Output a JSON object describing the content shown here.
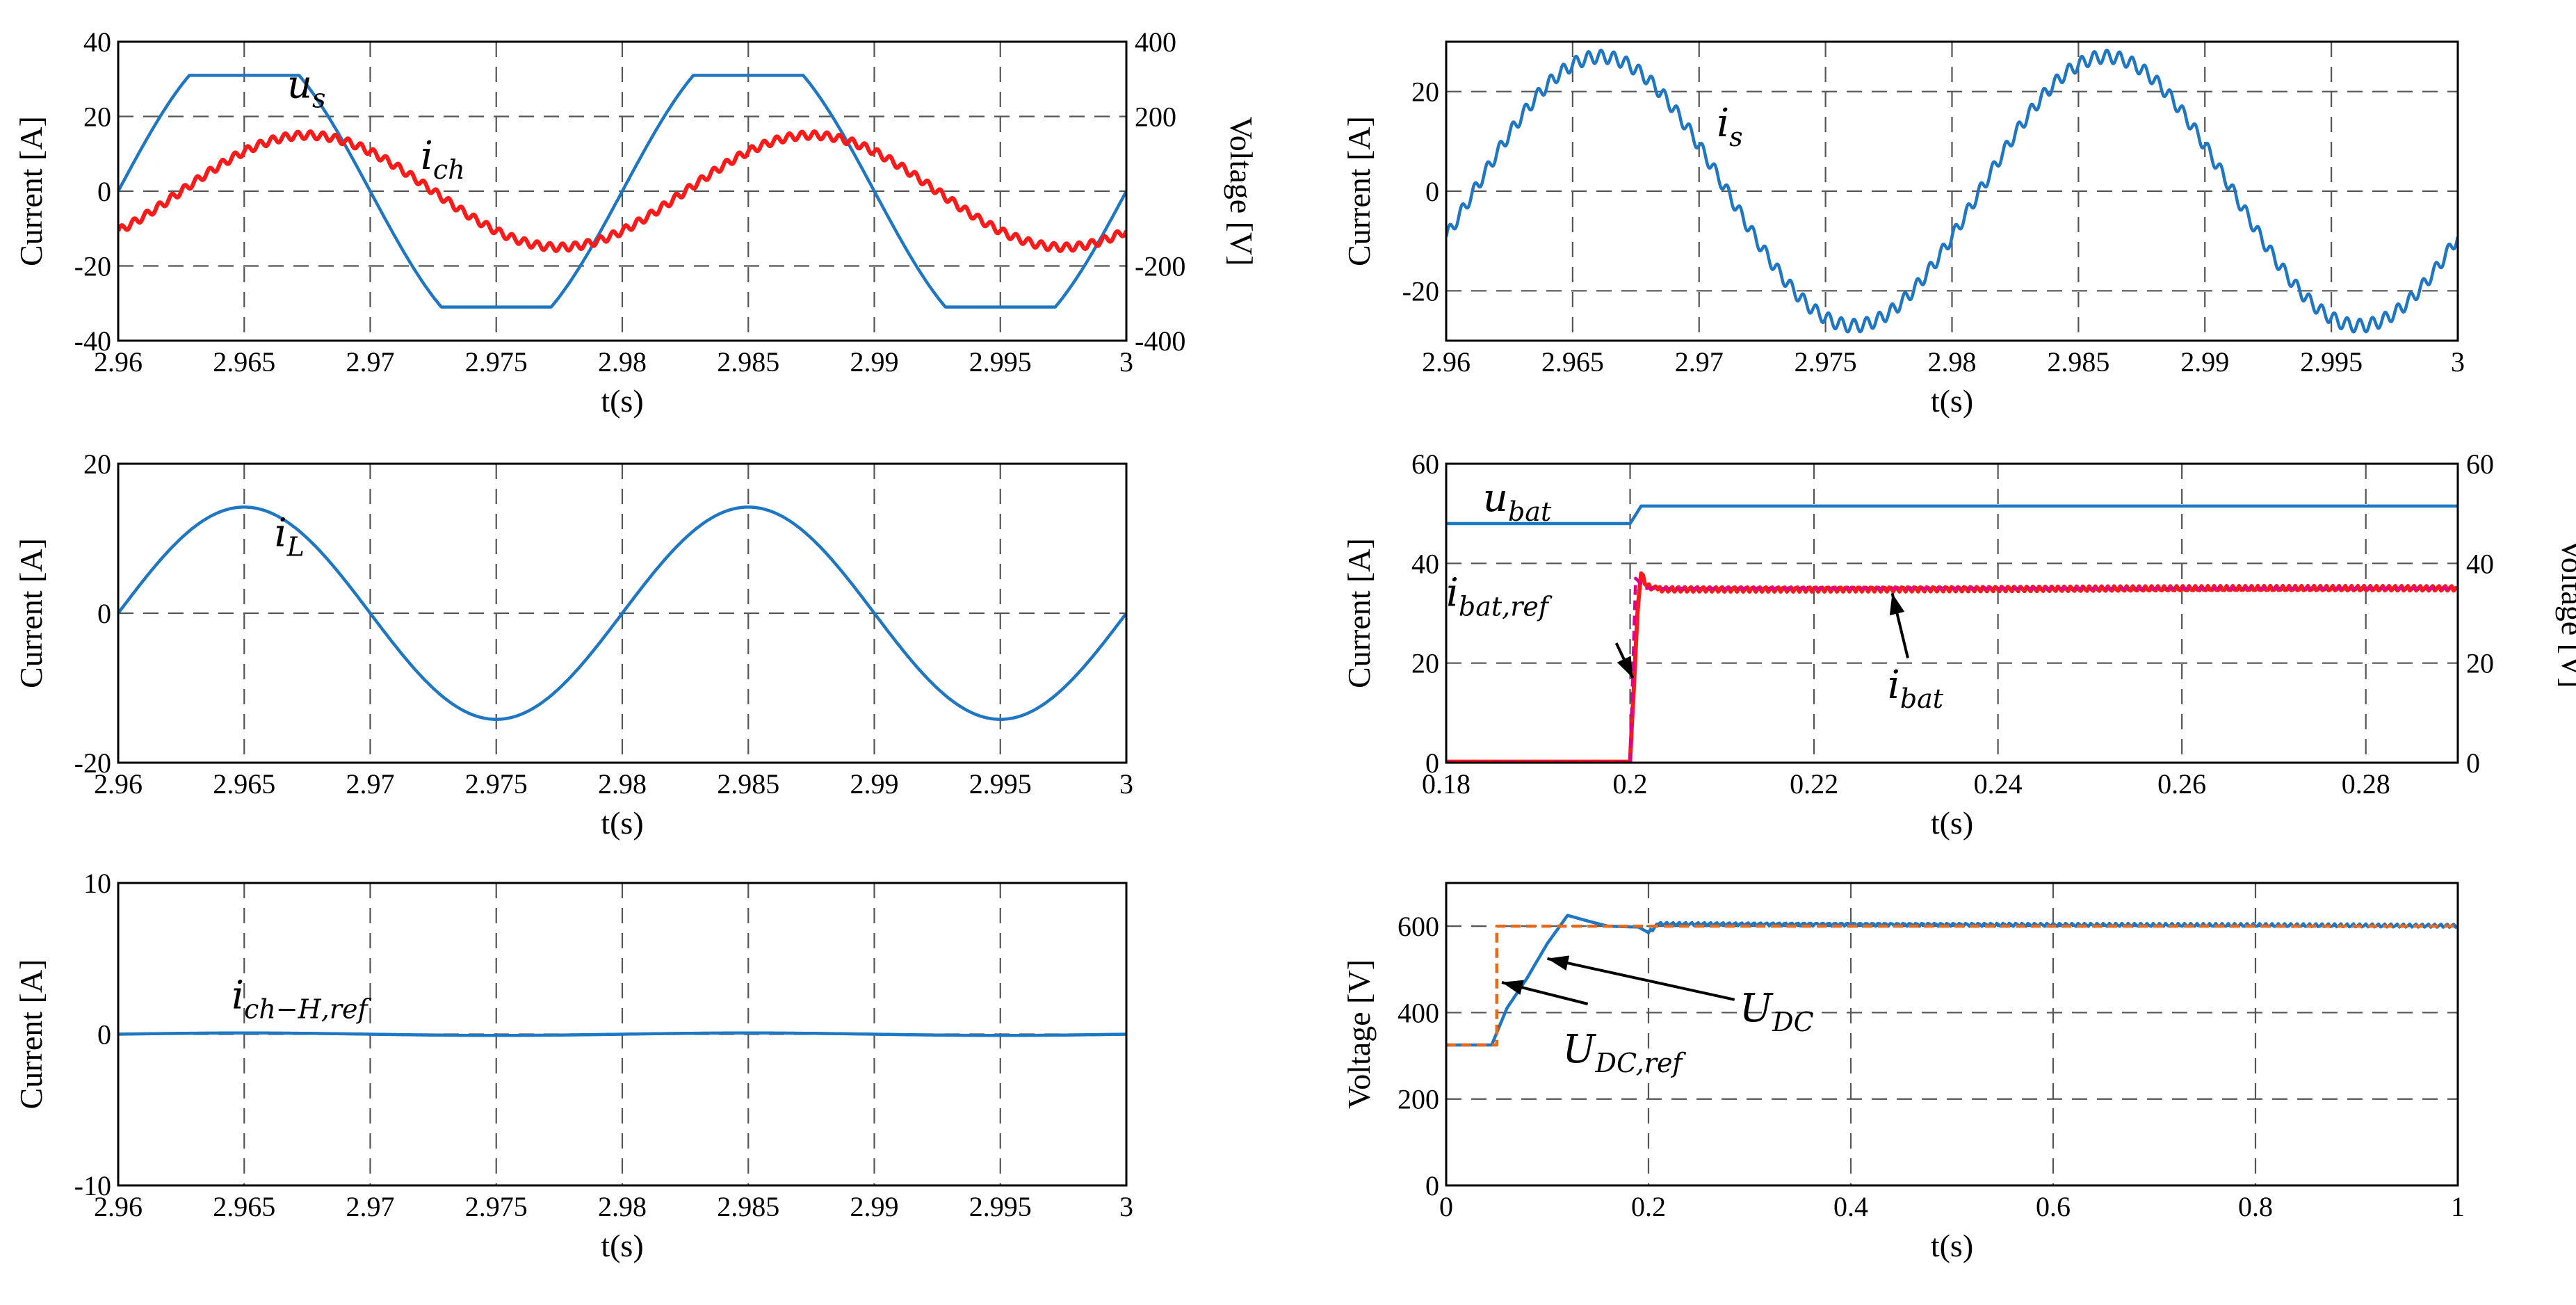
{
  "chart_data": [
    {
      "id": "p1",
      "type": "line",
      "xlabel": "t(s)",
      "ylabel": "Current [A]",
      "y2label": "Voltage [V]",
      "xlim": [
        2.96,
        3.0
      ],
      "ylim": [
        -40,
        40
      ],
      "y2lim": [
        -400,
        400
      ],
      "xticks": [
        2.96,
        2.965,
        2.97,
        2.975,
        2.98,
        2.985,
        2.99,
        2.995,
        3.0
      ],
      "xtick_labels": [
        "2.96",
        "2.965",
        "2.97",
        "2.975",
        "2.98",
        "2.985",
        "2.99",
        "2.995",
        "3"
      ],
      "yticks": [
        -40,
        -20,
        0,
        20,
        40
      ],
      "ytick_labels": [
        "-40",
        "-20",
        "0",
        "20",
        "40"
      ],
      "y2ticks": [
        -400,
        -200,
        0,
        200,
        400
      ],
      "y2tick_labels": [
        "-400",
        "-200",
        "",
        "200",
        "400"
      ],
      "grid": true,
      "series": [
        {
          "name": "u_s",
          "color": "#1f77c4",
          "kind": "clipped_sine",
          "axis": "right",
          "amplitude": 400,
          "clip": 310,
          "frequency": 50,
          "phase_at_xmin": 0,
          "x_start": 2.96,
          "x_end": 3.0
        },
        {
          "name": "i_ch",
          "color": "#ff1a1a",
          "kind": "sine_ripple",
          "axis": "left",
          "amplitude": 15,
          "zero_cross": 2.9625,
          "frequency": 50,
          "ripple": 1.0,
          "x_start": 2.96,
          "x_end": 3.0
        }
      ],
      "labels": [
        {
          "name": "u-s-label",
          "base": "u",
          "sub": "s",
          "x": 2.9667,
          "y": 25
        },
        {
          "name": "i-ch-label",
          "base": "i",
          "sub": "ch",
          "x": 2.972,
          "y": 6
        }
      ]
    },
    {
      "id": "p2",
      "type": "line",
      "xlabel": "t(s)",
      "ylabel": "Current [A]",
      "xlim": [
        2.96,
        3.0
      ],
      "ylim": [
        -30,
        30
      ],
      "xticks": [
        2.96,
        2.965,
        2.97,
        2.975,
        2.98,
        2.985,
        2.99,
        2.995,
        3.0
      ],
      "xtick_labels": [
        "2.96",
        "2.965",
        "2.97",
        "2.975",
        "2.98",
        "2.985",
        "2.99",
        "2.995",
        "3"
      ],
      "yticks": [
        -20,
        0,
        20
      ],
      "ytick_labels": [
        "-20",
        "0",
        "20"
      ],
      "grid": true,
      "series": [
        {
          "name": "i_s",
          "color": "#1f77c4",
          "kind": "sine_ripple",
          "axis": "left",
          "amplitude": 27,
          "zero_cross": 2.9611,
          "frequency": 50,
          "ripple": 1.3,
          "x_start": 2.96,
          "x_end": 3.0
        }
      ],
      "labels": [
        {
          "name": "i-s-label",
          "base": "i",
          "sub": "s",
          "x": 2.9707,
          "y": 11
        }
      ]
    },
    {
      "id": "p3",
      "type": "line",
      "xlabel": "t(s)",
      "ylabel": "Current [A]",
      "xlim": [
        2.96,
        3.0
      ],
      "ylim": [
        -20,
        20
      ],
      "xticks": [
        2.96,
        2.965,
        2.97,
        2.975,
        2.98,
        2.985,
        2.99,
        2.995,
        3.0
      ],
      "xtick_labels": [
        "2.96",
        "2.965",
        "2.97",
        "2.975",
        "2.98",
        "2.985",
        "2.99",
        "2.995",
        "3"
      ],
      "yticks": [
        -20,
        0,
        20
      ],
      "ytick_labels": [
        "-20",
        "0",
        "20"
      ],
      "grid": true,
      "series": [
        {
          "name": "i_L",
          "color": "#1f77c4",
          "kind": "sine_ripple",
          "axis": "left",
          "amplitude": 14.2,
          "zero_cross": 2.96,
          "frequency": 50,
          "ripple": 0,
          "x_start": 2.96,
          "x_end": 3.0
        }
      ],
      "labels": [
        {
          "name": "i-l-label",
          "base": "i",
          "sub": "L",
          "x": 2.9662,
          "y": 9
        }
      ]
    },
    {
      "id": "p4",
      "type": "line",
      "xlabel": "t(s)",
      "ylabel": "Current [A]",
      "y2label": "Voltage [V]",
      "xlim": [
        0.18,
        0.29
      ],
      "ylim": [
        0,
        60
      ],
      "y2lim": [
        0,
        60
      ],
      "xticks": [
        0.18,
        0.2,
        0.22,
        0.24,
        0.26,
        0.28
      ],
      "xtick_labels": [
        "0.18",
        "0.2",
        "0.22",
        "0.24",
        "0.26",
        "0.28"
      ],
      "yticks": [
        0,
        20,
        40,
        60
      ],
      "ytick_labels": [
        "0",
        "20",
        "40",
        "60"
      ],
      "y2ticks": [
        0,
        20,
        40,
        60
      ],
      "y2tick_labels": [
        "0",
        "20",
        "40",
        "60"
      ],
      "grid": true,
      "series": [
        {
          "name": "u_bat",
          "color": "#1f77c4",
          "kind": "steps",
          "axis": "right",
          "points": [
            [
              0.18,
              48
            ],
            [
              0.2,
              48
            ],
            [
              0.2012,
              51.5
            ],
            [
              0.29,
              51.5
            ]
          ]
        },
        {
          "name": "i_bat",
          "color": "#ff1a1a",
          "kind": "steps",
          "axis": "left",
          "ripple": 0.5,
          "points": [
            [
              0.18,
              0.2
            ],
            [
              0.2,
              0.2
            ],
            [
              0.2008,
              30
            ],
            [
              0.2012,
              38
            ],
            [
              0.2018,
              35.5
            ],
            [
              0.203,
              34.8
            ],
            [
              0.29,
              35
            ]
          ]
        },
        {
          "name": "i_bat,ref",
          "color": "#e0008a",
          "kind": "steps",
          "axis": "left",
          "dash": true,
          "points": [
            [
              0.18,
              0
            ],
            [
              0.2,
              0
            ],
            [
              0.2006,
              37
            ],
            [
              0.2016,
              35
            ],
            [
              0.29,
              35
            ]
          ]
        }
      ],
      "labels": [
        {
          "name": "u-bat-label",
          "base": "u",
          "sub": "bat",
          "x": 0.184,
          "y": 50.5
        },
        {
          "name": "i-bat-ref-label",
          "base": "i",
          "sub": "bat,ref",
          "x": 0.18,
          "y": 31.5
        },
        {
          "name": "i-bat-label",
          "base": "i",
          "sub": "bat",
          "x": 0.228,
          "y": 13
        }
      ],
      "arrows": [
        {
          "name": "i-bat-ref-arrow",
          "from": [
            0.1985,
            24
          ],
          "to": [
            0.2003,
            17
          ]
        },
        {
          "name": "i-bat-arrow",
          "from": [
            0.2302,
            21
          ],
          "to": [
            0.2285,
            34
          ]
        }
      ]
    },
    {
      "id": "p5",
      "type": "line",
      "xlabel": "t(s)",
      "ylabel": "Current [A]",
      "xlim": [
        2.96,
        3.0
      ],
      "ylim": [
        -10,
        10
      ],
      "xticks": [
        2.96,
        2.965,
        2.97,
        2.975,
        2.98,
        2.985,
        2.99,
        2.995,
        3.0
      ],
      "xtick_labels": [
        "2.96",
        "2.965",
        "2.97",
        "2.975",
        "2.98",
        "2.985",
        "2.99",
        "2.995",
        "3"
      ],
      "yticks": [
        -10,
        0,
        10
      ],
      "ytick_labels": [
        "-10",
        "0",
        "10"
      ],
      "grid": true,
      "series": [
        {
          "name": "i_ch-H,ref",
          "color": "#1f77c4",
          "kind": "sine_ripple",
          "axis": "left",
          "amplitude": 0.08,
          "zero_cross": 2.96,
          "frequency": 50,
          "ripple": 0,
          "x_start": 2.96,
          "x_end": 3.0
        }
      ],
      "labels": [
        {
          "name": "i-ch-h-ref-label",
          "base": "i",
          "sub": "ch−H,ref",
          "x": 2.9645,
          "y": 1.7
        }
      ]
    },
    {
      "id": "p6",
      "type": "line",
      "xlabel": "t(s)",
      "ylabel": "Voltage [V]",
      "xlim": [
        0,
        1
      ],
      "ylim": [
        0,
        700
      ],
      "xticks": [
        0,
        0.2,
        0.4,
        0.6,
        0.8,
        1.0
      ],
      "xtick_labels": [
        "0",
        "0.2",
        "0.4",
        "0.6",
        "0.8",
        "1"
      ],
      "yticks": [
        0,
        200,
        400,
        600
      ],
      "ytick_labels": [
        "0",
        "200",
        "400",
        "600"
      ],
      "grid": true,
      "series": [
        {
          "name": "U_DC",
          "color": "#1f77c4",
          "kind": "steps",
          "axis": "left",
          "ripple": 4,
          "ripple_from": 0.2,
          "points": [
            [
              0,
              325
            ],
            [
              0.045,
              325
            ],
            [
              0.06,
              410
            ],
            [
              0.08,
              480
            ],
            [
              0.1,
              560
            ],
            [
              0.12,
              625
            ],
            [
              0.14,
              612
            ],
            [
              0.16,
              600
            ],
            [
              0.19,
              598
            ],
            [
              0.2,
              585
            ],
            [
              0.21,
              605
            ],
            [
              1.0,
              601
            ]
          ]
        },
        {
          "name": "U_DC,ref",
          "color": "#e8691a",
          "kind": "steps",
          "axis": "left",
          "dash": true,
          "points": [
            [
              0,
              325
            ],
            [
              0.05,
              325
            ],
            [
              0.05,
              600
            ],
            [
              1.0,
              600
            ]
          ]
        }
      ],
      "labels": [
        {
          "name": "u-dc-label",
          "base": "U",
          "sub": "DC",
          "x": 0.29,
          "y": 380
        },
        {
          "name": "u-dc-ref-label",
          "base": "U",
          "sub": "DC,ref",
          "x": 0.115,
          "y": 285
        }
      ],
      "arrows": [
        {
          "name": "u-dc-ref-arrow",
          "from": [
            0.14,
            420
          ],
          "to": [
            0.055,
            470
          ]
        },
        {
          "name": "u-dc-arrow",
          "from": [
            0.285,
            430
          ],
          "to": [
            0.1,
            525
          ]
        }
      ]
    }
  ]
}
